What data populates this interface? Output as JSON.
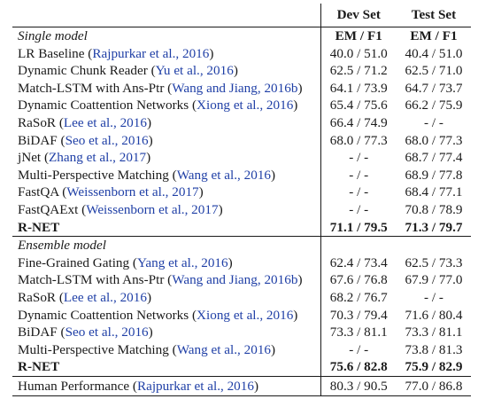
{
  "columns": {
    "dev_set": "Dev Set",
    "test_set": "Test Set",
    "metric": "EM / F1"
  },
  "sections": [
    {
      "title": "Single model",
      "rows": [
        {
          "model": "LR Baseline",
          "cite": "Rajpurkar et al., 2016",
          "dev": "40.0 / 51.0",
          "test": "40.4 / 51.0"
        },
        {
          "model": "Dynamic Chunk Reader",
          "cite": "Yu et al., 2016",
          "dev": "62.5 / 71.2",
          "test": "62.5 / 71.0"
        },
        {
          "model": "Match-LSTM with Ans-Ptr",
          "cite": "Wang and Jiang, 2016b",
          "dev": "64.1 / 73.9",
          "test": "64.7 / 73.7"
        },
        {
          "model": "Dynamic Coattention Networks",
          "cite": "Xiong et al., 2016",
          "dev": "65.4 / 75.6",
          "test": "66.2 / 75.9"
        },
        {
          "model": "RaSoR",
          "cite": "Lee et al., 2016",
          "dev": "66.4 / 74.9",
          "test": "- / -"
        },
        {
          "model": "BiDAF",
          "cite": "Seo et al., 2016",
          "dev": "68.0 / 77.3",
          "test": "68.0 / 77.3"
        },
        {
          "model": "jNet",
          "cite": "Zhang et al., 2017",
          "dev": "- / -",
          "test": "68.7 / 77.4"
        },
        {
          "model": "Multi-Perspective Matching",
          "cite": "Wang et al., 2016",
          "dev": "- / -",
          "test": "68.9 / 77.8"
        },
        {
          "model": "FastQA",
          "cite": "Weissenborn et al., 2017",
          "dev": "- / -",
          "test": "68.4 / 77.1"
        },
        {
          "model": "FastQAExt",
          "cite": "Weissenborn et al., 2017",
          "dev": "- / -",
          "test": "70.8 / 78.9"
        },
        {
          "model": "R-NET",
          "cite": "",
          "dev": "71.1 / 79.5",
          "test": "71.3 / 79.7",
          "bold": true
        }
      ]
    },
    {
      "title": "Ensemble model",
      "rows": [
        {
          "model": "Fine-Grained Gating",
          "cite": "Yang et al., 2016",
          "dev": "62.4 / 73.4",
          "test": "62.5 / 73.3"
        },
        {
          "model": "Match-LSTM with Ans-Ptr",
          "cite": "Wang and Jiang, 2016b",
          "dev": "67.6 / 76.8",
          "test": "67.9 / 77.0"
        },
        {
          "model": "RaSoR",
          "cite": "Lee et al., 2016",
          "dev": "68.2 / 76.7",
          "test": "- / -"
        },
        {
          "model": "Dynamic Coattention Networks",
          "cite": "Xiong et al., 2016",
          "dev": "70.3 / 79.4",
          "test": "71.6 / 80.4"
        },
        {
          "model": "BiDAF",
          "cite": "Seo et al., 2016",
          "dev": "73.3 / 81.1",
          "test": "73.3 / 81.1"
        },
        {
          "model": "Multi-Perspective Matching",
          "cite": "Wang et al., 2016",
          "dev": "- / -",
          "test": "73.8 / 81.3"
        },
        {
          "model": "R-NET",
          "cite": "",
          "dev": "75.6 / 82.8",
          "test": "75.9 / 82.9",
          "bold": true
        }
      ]
    }
  ],
  "footer_row": {
    "model": "Human Performance",
    "cite": "Rajpurkar et al., 2016",
    "dev": "80.3 / 90.5",
    "test": "77.0 / 86.8"
  }
}
